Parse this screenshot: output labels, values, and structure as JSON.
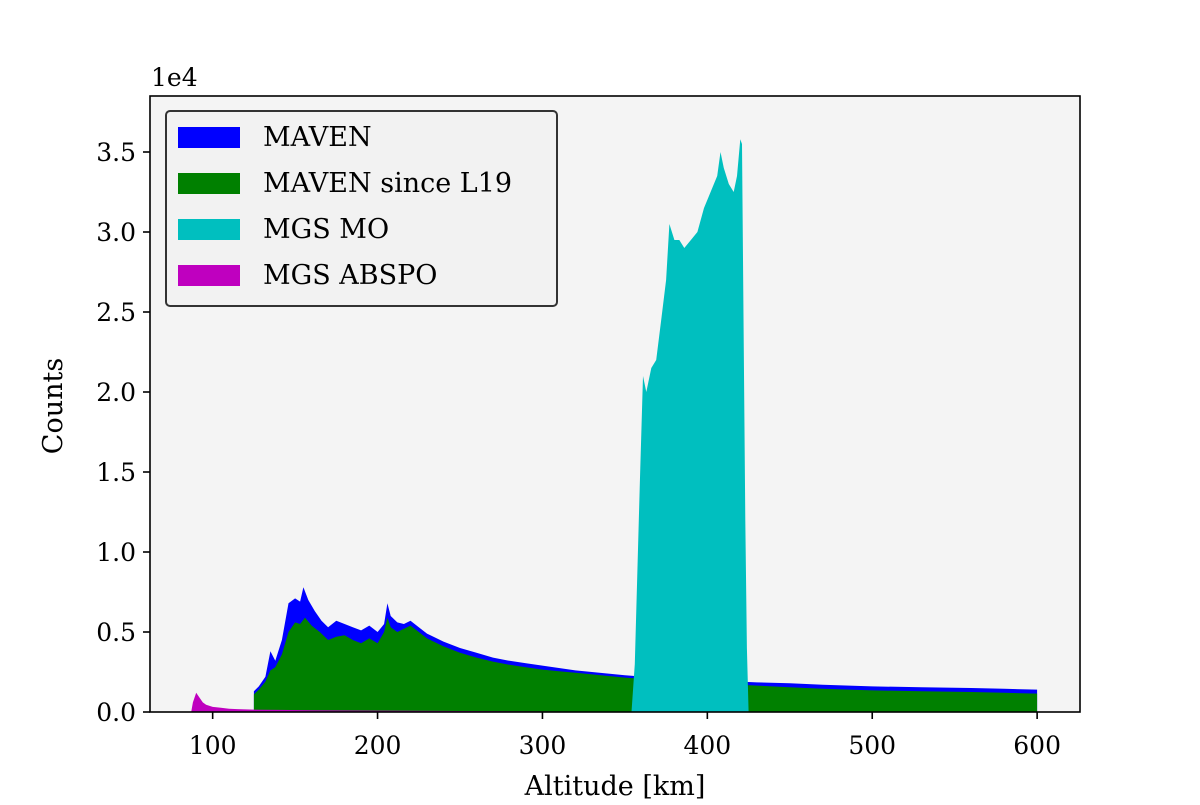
{
  "chart_data": {
    "type": "histogram",
    "xlabel": "Altitude [km]",
    "ylabel": "Counts",
    "y_offset_label": "1e4",
    "xlim": [
      62,
      626
    ],
    "ylim": [
      0,
      38500
    ],
    "xticks": [
      {
        "value": 100,
        "label": "100"
      },
      {
        "value": 200,
        "label": "200"
      },
      {
        "value": 300,
        "label": "300"
      },
      {
        "value": 400,
        "label": "400"
      },
      {
        "value": 500,
        "label": "500"
      },
      {
        "value": 600,
        "label": "600"
      }
    ],
    "yticks": [
      {
        "value": 0,
        "label": "0.0"
      },
      {
        "value": 5000,
        "label": "0.5"
      },
      {
        "value": 10000,
        "label": "1.0"
      },
      {
        "value": 15000,
        "label": "1.5"
      },
      {
        "value": 20000,
        "label": "2.0"
      },
      {
        "value": 25000,
        "label": "2.5"
      },
      {
        "value": 30000,
        "label": "3.0"
      },
      {
        "value": 35000,
        "label": "3.5"
      }
    ],
    "plot_background": "#f4f4f4",
    "legend_location": "upper-left",
    "series": [
      {
        "name": "MAVEN",
        "color": "#0000ff",
        "points": [
          [
            125,
            1300
          ],
          [
            128,
            1600
          ],
          [
            132,
            2200
          ],
          [
            135,
            3800
          ],
          [
            138,
            3200
          ],
          [
            142,
            4500
          ],
          [
            146,
            6800
          ],
          [
            150,
            7100
          ],
          [
            153,
            6900
          ],
          [
            155,
            7800
          ],
          [
            158,
            7000
          ],
          [
            162,
            6300
          ],
          [
            166,
            5700
          ],
          [
            170,
            5300
          ],
          [
            175,
            5700
          ],
          [
            180,
            5500
          ],
          [
            185,
            5300
          ],
          [
            190,
            5100
          ],
          [
            195,
            5400
          ],
          [
            200,
            5000
          ],
          [
            204,
            5500
          ],
          [
            206,
            6800
          ],
          [
            208,
            6000
          ],
          [
            212,
            5600
          ],
          [
            216,
            5500
          ],
          [
            220,
            5700
          ],
          [
            225,
            5300
          ],
          [
            230,
            4900
          ],
          [
            240,
            4400
          ],
          [
            250,
            4000
          ],
          [
            260,
            3700
          ],
          [
            270,
            3400
          ],
          [
            280,
            3200
          ],
          [
            290,
            3050
          ],
          [
            300,
            2900
          ],
          [
            310,
            2750
          ],
          [
            320,
            2600
          ],
          [
            330,
            2500
          ],
          [
            340,
            2400
          ],
          [
            350,
            2300
          ],
          [
            356,
            2250
          ],
          [
            420,
            1900
          ],
          [
            430,
            1850
          ],
          [
            450,
            1800
          ],
          [
            470,
            1700
          ],
          [
            500,
            1600
          ],
          [
            530,
            1550
          ],
          [
            560,
            1500
          ],
          [
            580,
            1450
          ],
          [
            600,
            1400
          ]
        ]
      },
      {
        "name": "MAVEN since L19",
        "color": "#008000",
        "points": [
          [
            125,
            1100
          ],
          [
            128,
            1400
          ],
          [
            132,
            1900
          ],
          [
            135,
            2600
          ],
          [
            138,
            2800
          ],
          [
            142,
            3600
          ],
          [
            146,
            5000
          ],
          [
            150,
            5600
          ],
          [
            153,
            5500
          ],
          [
            156,
            5900
          ],
          [
            160,
            5400
          ],
          [
            165,
            5000
          ],
          [
            170,
            4500
          ],
          [
            175,
            4700
          ],
          [
            180,
            4800
          ],
          [
            185,
            4500
          ],
          [
            190,
            4300
          ],
          [
            195,
            4600
          ],
          [
            200,
            4300
          ],
          [
            204,
            5000
          ],
          [
            206,
            5900
          ],
          [
            208,
            5300
          ],
          [
            212,
            5000
          ],
          [
            216,
            5200
          ],
          [
            220,
            5400
          ],
          [
            225,
            5000
          ],
          [
            230,
            4600
          ],
          [
            240,
            4100
          ],
          [
            250,
            3700
          ],
          [
            260,
            3400
          ],
          [
            270,
            3150
          ],
          [
            280,
            2950
          ],
          [
            290,
            2800
          ],
          [
            300,
            2650
          ],
          [
            310,
            2550
          ],
          [
            320,
            2450
          ],
          [
            330,
            2350
          ],
          [
            340,
            2250
          ],
          [
            350,
            2150
          ],
          [
            356,
            2100
          ],
          [
            420,
            1700
          ],
          [
            430,
            1650
          ],
          [
            450,
            1550
          ],
          [
            470,
            1450
          ],
          [
            500,
            1350
          ],
          [
            530,
            1300
          ],
          [
            560,
            1250
          ],
          [
            580,
            1200
          ],
          [
            600,
            1150
          ]
        ]
      },
      {
        "name": "MGS MO",
        "color": "#00bfbf",
        "points": [
          [
            354,
            0
          ],
          [
            356,
            3000
          ],
          [
            359,
            14000
          ],
          [
            361,
            21000
          ],
          [
            363,
            20000
          ],
          [
            366,
            21500
          ],
          [
            369,
            22000
          ],
          [
            372,
            24500
          ],
          [
            375,
            27000
          ],
          [
            377,
            30500
          ],
          [
            380,
            29500
          ],
          [
            383,
            29500
          ],
          [
            386,
            29000
          ],
          [
            390,
            29500
          ],
          [
            394,
            30000
          ],
          [
            398,
            31500
          ],
          [
            402,
            32500
          ],
          [
            406,
            33500
          ],
          [
            408,
            35000
          ],
          [
            410,
            34000
          ],
          [
            413,
            33000
          ],
          [
            416,
            32500
          ],
          [
            418,
            33500
          ],
          [
            420,
            35800
          ],
          [
            421,
            35500
          ],
          [
            422,
            24000
          ],
          [
            423,
            12000
          ],
          [
            424,
            4000
          ],
          [
            425,
            0
          ]
        ]
      },
      {
        "name": "MGS ABSPO",
        "color": "#bf00bf",
        "points": [
          [
            87,
            0
          ],
          [
            88,
            600
          ],
          [
            90,
            1200
          ],
          [
            92,
            900
          ],
          [
            94,
            600
          ],
          [
            96,
            450
          ],
          [
            100,
            320
          ],
          [
            105,
            260
          ],
          [
            110,
            200
          ],
          [
            115,
            180
          ],
          [
            120,
            160
          ],
          [
            125,
            150
          ],
          [
            130,
            140
          ],
          [
            140,
            130
          ],
          [
            160,
            110
          ],
          [
            200,
            90
          ],
          [
            250,
            60
          ],
          [
            300,
            40
          ],
          [
            352,
            20
          ],
          [
            354,
            0
          ]
        ]
      }
    ]
  }
}
